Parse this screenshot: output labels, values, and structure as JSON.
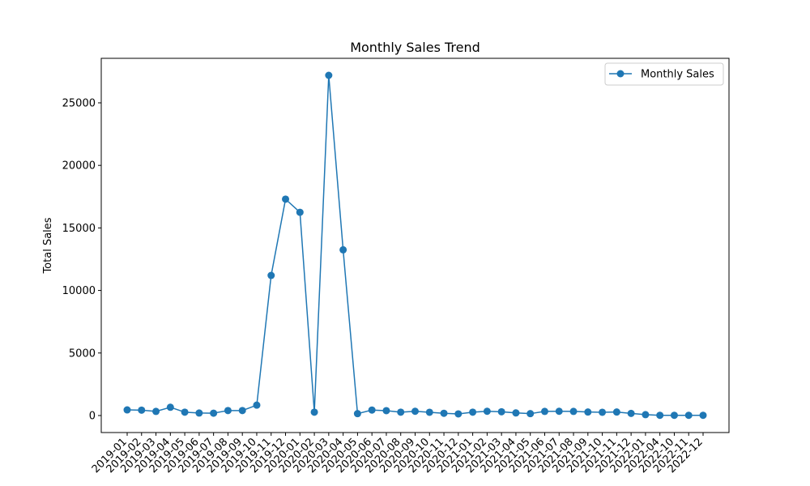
{
  "chart_data": {
    "type": "line",
    "title": "Monthly Sales Trend",
    "xlabel": "",
    "ylabel": "Total Sales",
    "x": [
      "2019-01",
      "2019-02",
      "2019-03",
      "2019-04",
      "2019-05",
      "2019-06",
      "2019-07",
      "2019-08",
      "2019-09",
      "2019-10",
      "2019-11",
      "2019-12",
      "2020-01",
      "2020-02",
      "2020-03",
      "2020-04",
      "2020-05",
      "2020-06",
      "2020-07",
      "2020-08",
      "2020-09",
      "2020-10",
      "2020-11",
      "2020-12",
      "2021-01",
      "2021-02",
      "2021-03",
      "2021-04",
      "2021-05",
      "2021-06",
      "2021-07",
      "2021-08",
      "2021-09",
      "2021-10",
      "2021-11",
      "2021-12",
      "2022-01",
      "2022-04",
      "2022-10",
      "2022-11",
      "2022-12"
    ],
    "series": [
      {
        "name": "Monthly Sales",
        "values": [
          450,
          430,
          330,
          660,
          270,
          200,
          190,
          400,
          400,
          830,
          11200,
          17300,
          16250,
          270,
          27200,
          13250,
          150,
          440,
          390,
          270,
          340,
          260,
          180,
          130,
          270,
          340,
          300,
          210,
          150,
          330,
          340,
          330,
          280,
          260,
          280,
          170,
          70,
          20,
          20,
          20,
          20
        ],
        "color": "#1f77b4",
        "marker": "circle"
      }
    ],
    "ylim": [
      -1360,
      28560
    ],
    "yticks": [
      0,
      5000,
      10000,
      15000,
      20000,
      25000
    ],
    "grid": false,
    "legend": "upper right"
  }
}
